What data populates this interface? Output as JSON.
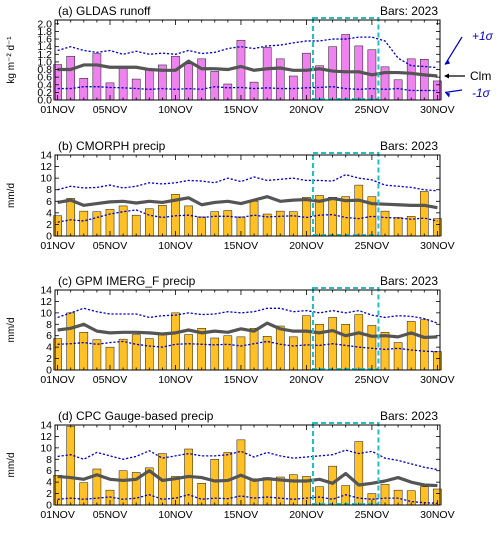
{
  "figure": {
    "x_tick_labels": [
      "01NOV",
      "05NOV",
      "10NOV",
      "15NOV",
      "20NOV",
      "25NOV",
      "30NOV"
    ],
    "x_tick_days": [
      1,
      5,
      10,
      15,
      20,
      25,
      30
    ],
    "highlight_days": [
      20.5,
      25.5
    ],
    "colors": {
      "bar_runoff": "#EE82EE",
      "bar_precip": "#FFC125",
      "clm_line": "#555555",
      "sigma_line": "#0000CC",
      "highlight_box": "#20C0C0"
    }
  },
  "chart_data": [
    {
      "type": "bar",
      "title": "(a) GLDAS runoff",
      "bars_label": "Bars: 2023",
      "ylabel": "kg m⁻² d⁻¹",
      "ylim": [
        0,
        2.1
      ],
      "yticks": [
        0.0,
        0.2,
        0.4,
        0.6,
        0.8,
        1.0,
        1.2,
        1.4,
        1.6,
        1.8,
        2.0
      ],
      "ytick_labels": [
        "0.0",
        "0.2",
        "0.4",
        "0.6",
        "0.8",
        "1.0",
        "1.2",
        "1.4",
        "1.6",
        "1.8",
        "2.0"
      ],
      "legend": {
        "plus_sigma": "+1σ",
        "clm": "Clm",
        "minus_sigma": "-1σ"
      },
      "x": [
        1,
        2,
        3,
        4,
        5,
        6,
        7,
        8,
        9,
        10,
        11,
        12,
        13,
        14,
        15,
        16,
        17,
        18,
        19,
        20,
        21,
        22,
        23,
        24,
        25,
        26,
        27,
        28,
        29,
        30
      ],
      "bars": [
        0.93,
        1.15,
        0.57,
        1.22,
        0.45,
        0.83,
        0.55,
        0.78,
        0.92,
        1.15,
        0.95,
        1.08,
        0.75,
        0.42,
        1.57,
        0.47,
        1.38,
        1.08,
        0.63,
        1.23,
        0.9,
        1.4,
        1.72,
        1.42,
        1.32,
        0.87,
        0.53,
        1.08,
        1.07,
        0.5
      ],
      "clm": [
        0.8,
        0.8,
        0.92,
        0.92,
        0.86,
        0.86,
        0.86,
        0.8,
        0.78,
        0.78,
        1.02,
        0.82,
        0.82,
        0.8,
        0.88,
        0.78,
        0.82,
        0.84,
        0.78,
        0.78,
        0.82,
        0.76,
        0.74,
        0.74,
        0.66,
        0.72,
        0.72,
        0.7,
        0.66,
        0.63
      ],
      "plus_sigma": [
        1.3,
        1.4,
        1.3,
        1.25,
        1.3,
        1.2,
        1.28,
        1.2,
        1.23,
        1.2,
        1.3,
        1.22,
        1.25,
        1.35,
        1.4,
        1.35,
        1.42,
        1.44,
        1.5,
        1.55,
        1.55,
        1.6,
        1.6,
        1.65,
        1.65,
        1.55,
        1.1,
        0.9,
        0.88,
        0.85
      ],
      "minus_sigma": [
        0.3,
        0.3,
        0.35,
        0.35,
        0.33,
        0.32,
        0.3,
        0.28,
        0.3,
        0.28,
        0.3,
        0.28,
        0.35,
        0.32,
        0.33,
        0.3,
        0.32,
        0.3,
        0.3,
        0.32,
        0.33,
        0.35,
        0.3,
        0.28,
        0.3,
        0.28,
        0.3,
        0.25,
        0.25,
        0.25
      ]
    },
    {
      "type": "bar",
      "title": "(b) CMORPH precip",
      "bars_label": "Bars: 2023",
      "ylabel": "mm/d",
      "ylim": [
        0,
        14
      ],
      "yticks": [
        0,
        2,
        4,
        6,
        8,
        10,
        12,
        14
      ],
      "ytick_labels": [
        "0",
        "2",
        "4",
        "6",
        "8",
        "10",
        "12",
        "14"
      ],
      "x": [
        1,
        2,
        3,
        4,
        5,
        6,
        7,
        8,
        9,
        10,
        11,
        12,
        13,
        14,
        15,
        16,
        17,
        18,
        19,
        20,
        21,
        22,
        23,
        24,
        25,
        26,
        27,
        28,
        29,
        30
      ],
      "bars": [
        3.5,
        6.5,
        4.3,
        4.2,
        4.6,
        5.2,
        3.6,
        4.7,
        5.3,
        7.2,
        5.2,
        3.3,
        4.2,
        4.4,
        3.3,
        6.0,
        3.8,
        4.3,
        4.2,
        6.7,
        7.0,
        6.7,
        6.8,
        8.8,
        6.8,
        4.3,
        3.2,
        3.4,
        7.7,
        3.0
      ],
      "clm": [
        5.8,
        6.2,
        5.3,
        5.6,
        5.9,
        6.0,
        5.7,
        6.0,
        5.8,
        6.2,
        6.6,
        5.4,
        5.8,
        6.0,
        5.6,
        6.2,
        6.8,
        6.0,
        6.2,
        6.3,
        6.0,
        6.5,
        6.1,
        6.2,
        5.6,
        5.5,
        5.4,
        5.3,
        5.3,
        4.9
      ],
      "plus_sigma": [
        8.0,
        8.6,
        8.3,
        8.4,
        8.8,
        8.3,
        8.6,
        9.2,
        9.0,
        9.2,
        9.6,
        9.5,
        9.2,
        10.0,
        9.4,
        10.2,
        9.6,
        9.8,
        10.0,
        9.6,
        9.6,
        9.5,
        10.6,
        10.0,
        9.7,
        8.8,
        8.6,
        8.4,
        8.0,
        7.8
      ],
      "minus_sigma": [
        2.4,
        2.8,
        2.6,
        3.2,
        3.8,
        4.2,
        4.5,
        3.6,
        3.2,
        3.5,
        3.6,
        3.2,
        3.4,
        3.4,
        3.2,
        3.6,
        3.3,
        3.4,
        3.5,
        3.2,
        3.6,
        3.7,
        3.2,
        3.0,
        3.4,
        3.2,
        3.1,
        2.9,
        3.1,
        2.6
      ]
    },
    {
      "type": "bar",
      "title": "(c) GPM IMERG_F precip",
      "bars_label": "Bars: 2023",
      "ylabel": "mm/d",
      "ylim": [
        0,
        14
      ],
      "yticks": [
        0,
        2,
        4,
        6,
        8,
        10,
        12,
        14
      ],
      "ytick_labels": [
        "0",
        "2",
        "4",
        "6",
        "8",
        "10",
        "12",
        "14"
      ],
      "x": [
        1,
        2,
        3,
        4,
        5,
        6,
        7,
        8,
        9,
        10,
        11,
        12,
        13,
        14,
        15,
        16,
        17,
        18,
        19,
        20,
        21,
        22,
        23,
        24,
        25,
        26,
        27,
        28,
        29,
        30
      ],
      "bars": [
        5.5,
        10.0,
        6.6,
        5.3,
        4.0,
        5.4,
        6.2,
        5.5,
        6.2,
        10.0,
        6.2,
        7.3,
        5.6,
        6.0,
        5.8,
        7.3,
        5.9,
        7.7,
        5.8,
        9.5,
        8.0,
        9.2,
        8.0,
        9.7,
        7.8,
        6.6,
        4.8,
        8.5,
        8.8,
        3.2
      ],
      "clm": [
        7.0,
        7.3,
        8.0,
        6.8,
        6.5,
        6.6,
        6.6,
        6.5,
        6.3,
        6.5,
        7.0,
        6.5,
        6.8,
        6.6,
        7.2,
        6.8,
        8.2,
        7.2,
        6.8,
        6.8,
        6.5,
        6.9,
        6.0,
        6.5,
        5.9,
        6.0,
        5.8,
        6.5,
        5.7,
        5.8
      ],
      "plus_sigma": [
        9.2,
        10.0,
        10.8,
        10.2,
        9.8,
        9.8,
        9.8,
        9.2,
        9.5,
        9.6,
        10.0,
        9.7,
        9.8,
        10.2,
        10.0,
        10.2,
        10.8,
        10.8,
        10.2,
        10.4,
        10.0,
        10.4,
        10.0,
        10.4,
        9.6,
        9.2,
        9.5,
        9.4,
        9.0,
        8.2
      ],
      "minus_sigma": [
        4.5,
        4.6,
        4.8,
        4.5,
        4.8,
        5.0,
        4.5,
        4.2,
        4.0,
        4.5,
        4.6,
        4.5,
        4.4,
        4.5,
        4.2,
        4.6,
        5.0,
        4.5,
        4.2,
        4.4,
        4.3,
        4.6,
        4.3,
        4.0,
        3.8,
        3.6,
        3.8,
        3.5,
        3.3,
        3.2
      ]
    },
    {
      "type": "bar",
      "title": "(d) CPC Gauge-based precip",
      "bars_label": "Bars: 2023",
      "ylabel": "mm/d",
      "ylim": [
        0,
        14
      ],
      "yticks": [
        0,
        2,
        4,
        6,
        8,
        10,
        12,
        14
      ],
      "ytick_labels": [
        "0",
        "2",
        "4",
        "6",
        "8",
        "10",
        "12",
        "14"
      ],
      "x": [
        1,
        2,
        3,
        4,
        5,
        6,
        7,
        8,
        9,
        10,
        11,
        12,
        13,
        14,
        15,
        16,
        17,
        18,
        19,
        20,
        21,
        22,
        23,
        24,
        25,
        26,
        27,
        28,
        29,
        30
      ],
      "bars": [
        5.2,
        13.8,
        3.9,
        6.3,
        2.6,
        6.0,
        5.7,
        6.5,
        9.0,
        5.0,
        9.8,
        3.8,
        8.0,
        9.2,
        11.4,
        4.6,
        4.8,
        4.9,
        5.3,
        5.0,
        3.2,
        6.8,
        3.4,
        11.1,
        2.0,
        3.6,
        2.6,
        2.5,
        3.2,
        2.8
      ],
      "clm": [
        5.0,
        4.8,
        4.5,
        5.3,
        4.5,
        4.3,
        4.5,
        6.0,
        4.3,
        4.6,
        5.0,
        4.8,
        4.2,
        4.3,
        5.2,
        4.3,
        4.6,
        4.4,
        4.2,
        4.2,
        4.5,
        3.8,
        5.5,
        3.5,
        3.8,
        4.2,
        4.8,
        4.0,
        3.5,
        3.4
      ],
      "plus_sigma": [
        8.5,
        8.8,
        8.0,
        9.2,
        8.6,
        8.0,
        8.5,
        9.5,
        8.2,
        8.6,
        9.0,
        8.6,
        8.6,
        8.8,
        9.4,
        8.4,
        9.2,
        8.6,
        8.2,
        8.4,
        8.6,
        8.8,
        9.6,
        9.0,
        9.4,
        8.2,
        7.8,
        7.2,
        6.6,
        6.2
      ],
      "minus_sigma": [
        1.0,
        1.2,
        1.0,
        1.2,
        1.4,
        1.0,
        1.2,
        1.8,
        1.0,
        1.2,
        1.8,
        1.0,
        1.2,
        1.1,
        1.6,
        1.2,
        1.4,
        1.2,
        1.0,
        1.2,
        1.4,
        1.0,
        1.8,
        1.2,
        1.0,
        1.2,
        1.2,
        0.6,
        0.4,
        0.3
      ]
    }
  ]
}
